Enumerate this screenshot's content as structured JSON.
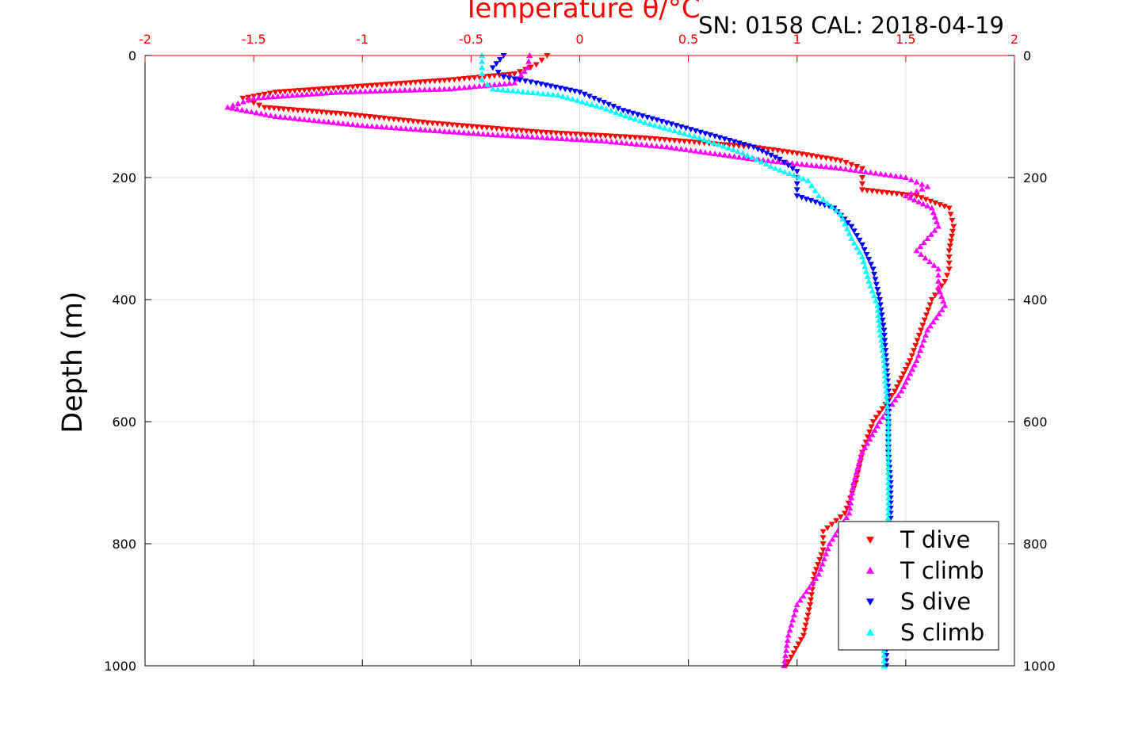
{
  "chart_data": {
    "type": "scatter",
    "title": "Temperature θ/°C",
    "subtitle": "SN: 0158  CAL: 2018-04-19",
    "xlabel": "Temperature θ/°C",
    "ylabel": "Depth (m)",
    "xlim": [
      -2,
      2
    ],
    "ylim": [
      0,
      1000
    ],
    "y_reversed": true,
    "x_ticks": [
      "-2",
      "-1.5",
      "-1",
      "-0.5",
      "0",
      "0.5",
      "1",
      "1.5",
      "2"
    ],
    "x_tick_values": [
      -2,
      -1.5,
      -1,
      -0.5,
      0,
      0.5,
      1,
      1.5,
      2
    ],
    "y_ticks": [
      "0",
      "200",
      "400",
      "600",
      "800",
      "1000"
    ],
    "y_tick_values": [
      0,
      200,
      400,
      600,
      800,
      1000
    ],
    "grid": true,
    "legend_position": "bottom-right",
    "series": [
      {
        "name": "T dive",
        "color": "#ff0000",
        "marker": "triangle-down",
        "points": [
          [
            -0.15,
            0
          ],
          [
            -0.2,
            15
          ],
          [
            -0.3,
            30
          ],
          [
            -0.6,
            40
          ],
          [
            -1.0,
            50
          ],
          [
            -1.4,
            60
          ],
          [
            -1.55,
            70
          ],
          [
            -1.45,
            85
          ],
          [
            -1.1,
            95
          ],
          [
            -0.7,
            110
          ],
          [
            -0.2,
            125
          ],
          [
            0.3,
            135
          ],
          [
            0.8,
            150
          ],
          [
            1.0,
            160
          ],
          [
            1.2,
            172
          ],
          [
            1.3,
            185
          ],
          [
            1.3,
            200
          ],
          [
            1.3,
            220
          ],
          [
            1.55,
            230
          ],
          [
            1.7,
            250
          ],
          [
            1.72,
            280
          ],
          [
            1.7,
            320
          ],
          [
            1.7,
            350
          ],
          [
            1.68,
            370
          ],
          [
            1.62,
            400
          ],
          [
            1.57,
            450
          ],
          [
            1.52,
            500
          ],
          [
            1.45,
            550
          ],
          [
            1.35,
            600
          ],
          [
            1.3,
            650
          ],
          [
            1.27,
            700
          ],
          [
            1.22,
            750
          ],
          [
            1.12,
            780
          ],
          [
            1.12,
            810
          ],
          [
            1.08,
            850
          ],
          [
            1.06,
            900
          ],
          [
            1.03,
            950
          ],
          [
            0.95,
            1000
          ]
        ]
      },
      {
        "name": "T climb",
        "color": "#ff00ff",
        "marker": "triangle-up",
        "points": [
          [
            -0.23,
            0
          ],
          [
            -0.24,
            20
          ],
          [
            -0.3,
            45
          ],
          [
            -0.6,
            55
          ],
          [
            -1.1,
            60
          ],
          [
            -1.5,
            70
          ],
          [
            -1.62,
            85
          ],
          [
            -1.4,
            100
          ],
          [
            -1.0,
            115
          ],
          [
            -0.4,
            130
          ],
          [
            0.1,
            140
          ],
          [
            0.4,
            150
          ],
          [
            0.8,
            170
          ],
          [
            1.2,
            185
          ],
          [
            1.5,
            200
          ],
          [
            1.6,
            215
          ],
          [
            1.5,
            230
          ],
          [
            1.62,
            250
          ],
          [
            1.65,
            280
          ],
          [
            1.55,
            320
          ],
          [
            1.65,
            350
          ],
          [
            1.65,
            380
          ],
          [
            1.68,
            410
          ],
          [
            1.6,
            450
          ],
          [
            1.55,
            500
          ],
          [
            1.48,
            550
          ],
          [
            1.38,
            600
          ],
          [
            1.3,
            650
          ],
          [
            1.26,
            700
          ],
          [
            1.24,
            750
          ],
          [
            1.15,
            800
          ],
          [
            1.1,
            850
          ],
          [
            1.0,
            900
          ],
          [
            0.96,
            950
          ],
          [
            0.94,
            1000
          ]
        ]
      },
      {
        "name": "S dive",
        "color": "#0000ff",
        "marker": "triangle-down",
        "points": [
          [
            -0.35,
            0
          ],
          [
            -0.4,
            20
          ],
          [
            -0.35,
            35
          ],
          [
            -0.2,
            45
          ],
          [
            0.0,
            60
          ],
          [
            0.2,
            90
          ],
          [
            0.4,
            110
          ],
          [
            0.6,
            130
          ],
          [
            0.8,
            150
          ],
          [
            0.92,
            170
          ],
          [
            1.0,
            190
          ],
          [
            1.0,
            210
          ],
          [
            1.0,
            230
          ],
          [
            1.17,
            250
          ],
          [
            1.25,
            280
          ],
          [
            1.3,
            310
          ],
          [
            1.35,
            350
          ],
          [
            1.38,
            400
          ],
          [
            1.4,
            450
          ],
          [
            1.41,
            500
          ],
          [
            1.42,
            550
          ],
          [
            1.42,
            600
          ],
          [
            1.42,
            650
          ],
          [
            1.43,
            700
          ],
          [
            1.43,
            750
          ],
          [
            1.43,
            800
          ],
          [
            1.42,
            850
          ],
          [
            1.42,
            900
          ],
          [
            1.41,
            950
          ],
          [
            1.41,
            1000
          ]
        ]
      },
      {
        "name": "S climb",
        "color": "#00ffff",
        "marker": "triangle-up",
        "points": [
          [
            -0.45,
            0
          ],
          [
            -0.45,
            20
          ],
          [
            -0.45,
            40
          ],
          [
            -0.4,
            55
          ],
          [
            -0.1,
            65
          ],
          [
            0.1,
            85
          ],
          [
            0.3,
            110
          ],
          [
            0.55,
            135
          ],
          [
            0.75,
            160
          ],
          [
            0.9,
            185
          ],
          [
            1.05,
            205
          ],
          [
            1.1,
            230
          ],
          [
            1.2,
            260
          ],
          [
            1.25,
            300
          ],
          [
            1.3,
            330
          ],
          [
            1.33,
            370
          ],
          [
            1.37,
            410
          ],
          [
            1.38,
            450
          ],
          [
            1.4,
            500
          ],
          [
            1.41,
            550
          ],
          [
            1.42,
            600
          ],
          [
            1.42,
            650
          ],
          [
            1.42,
            700
          ],
          [
            1.42,
            750
          ],
          [
            1.41,
            800
          ],
          [
            1.41,
            850
          ],
          [
            1.41,
            900
          ],
          [
            1.4,
            950
          ],
          [
            1.4,
            1000
          ]
        ]
      }
    ]
  }
}
